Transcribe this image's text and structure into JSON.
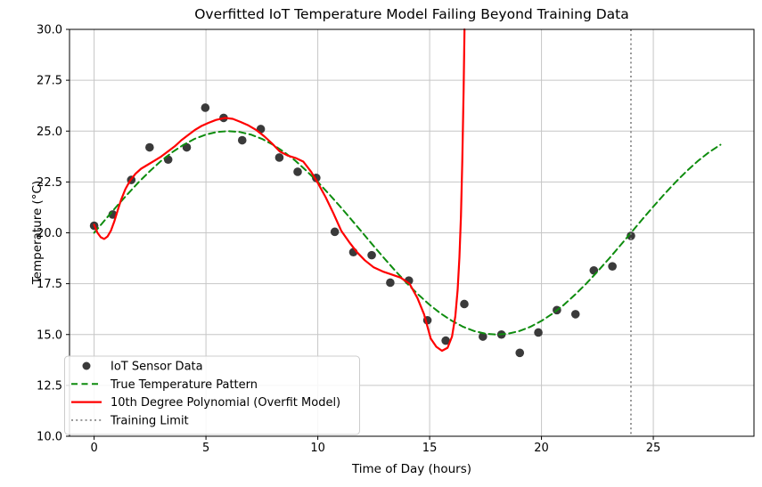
{
  "chart_data": {
    "type": "line",
    "title": "Overfitted IoT Temperature Model Failing Beyond Training Data",
    "xlabel": "Time of Day (hours)",
    "ylabel": "Temperature (°C)",
    "xlim": [
      -1.1,
      29.5
    ],
    "ylim": [
      10,
      30
    ],
    "x_ticks": [
      0,
      5,
      10,
      15,
      20,
      25
    ],
    "x_tick_labels": [
      "0",
      "5",
      "10",
      "15",
      "20",
      "25"
    ],
    "y_ticks": [
      10,
      12.5,
      15,
      17.5,
      20,
      22.5,
      25,
      27.5,
      30
    ],
    "y_tick_labels": [
      "10.0",
      "12.5",
      "15.0",
      "17.5",
      "20.0",
      "22.5",
      "25.0",
      "27.5",
      "30.0"
    ],
    "grid": true,
    "grid_color": "#c6c6c6",
    "spine_color": "#000000",
    "legend_position": "lower-left",
    "series": [
      {
        "key": "sensor-data",
        "name": "IoT Sensor Data",
        "type": "scatter",
        "color": "#3a3a3a",
        "marker_radius": 4.8,
        "x": [
          0,
          0.83,
          1.66,
          2.48,
          3.31,
          4.14,
          4.97,
          5.79,
          6.62,
          7.45,
          8.28,
          9.1,
          9.93,
          10.76,
          11.59,
          12.41,
          13.24,
          14.07,
          14.9,
          15.72,
          16.55,
          17.38,
          18.21,
          19.03,
          19.86,
          20.69,
          21.52,
          22.34,
          23.17,
          24.0
        ],
        "y": [
          20.35,
          20.9,
          22.6,
          24.2,
          23.6,
          24.2,
          26.15,
          25.65,
          24.55,
          25.1,
          23.7,
          23.0,
          22.7,
          20.05,
          19.05,
          18.9,
          17.55,
          17.65,
          15.7,
          14.7,
          16.5,
          14.9,
          15.0,
          14.1,
          15.1,
          16.2,
          16.0,
          18.15,
          18.35,
          19.85
        ]
      },
      {
        "key": "true-pattern",
        "name": "True Temperature Pattern",
        "type": "line",
        "style": "dashed",
        "color": "#0e8c0e",
        "width": 2,
        "x": [
          0,
          0.5,
          1,
          1.5,
          2,
          2.5,
          3,
          3.5,
          4,
          4.5,
          5,
          5.5,
          6,
          6.5,
          7,
          7.5,
          8,
          8.5,
          9,
          9.5,
          10,
          10.5,
          11,
          11.5,
          12,
          12.5,
          13,
          13.5,
          14,
          14.5,
          15,
          15.5,
          16,
          16.5,
          17,
          17.5,
          18,
          18.5,
          19,
          19.5,
          20,
          20.5,
          21,
          21.5,
          22,
          22.5,
          23,
          23.5,
          24,
          24.5,
          25,
          25.5,
          26,
          26.5,
          27,
          27.5,
          28
        ],
        "y": [
          20.0,
          20.65,
          21.29,
          21.91,
          22.5,
          23.04,
          23.54,
          23.97,
          24.33,
          24.62,
          24.83,
          24.96,
          25.0,
          24.96,
          24.83,
          24.62,
          24.33,
          23.97,
          23.54,
          23.04,
          22.5,
          21.91,
          21.29,
          20.65,
          20.0,
          19.35,
          18.71,
          18.09,
          17.5,
          16.96,
          16.46,
          16.03,
          15.67,
          15.38,
          15.17,
          15.04,
          15.0,
          15.04,
          15.17,
          15.38,
          15.67,
          16.03,
          16.46,
          16.96,
          17.5,
          18.09,
          18.71,
          19.35,
          20.0,
          20.65,
          21.29,
          21.91,
          22.5,
          23.04,
          23.54,
          23.97,
          24.33
        ]
      },
      {
        "key": "overfit-model",
        "name": "10th Degree Polynomial (Overfit Model)",
        "type": "line",
        "style": "solid",
        "color": "#ff0000",
        "width": 2.2,
        "x": [
          0,
          0.15,
          0.3,
          0.45,
          0.6,
          0.75,
          0.9,
          1.05,
          1.2,
          1.4,
          1.6,
          1.85,
          2.1,
          2.4,
          2.7,
          3.0,
          3.3,
          3.6,
          3.9,
          4.2,
          4.5,
          4.8,
          5.1,
          5.45,
          5.85,
          6.2,
          6.55,
          6.9,
          7.25,
          7.6,
          7.95,
          8.3,
          8.65,
          9.0,
          9.35,
          9.7,
          10.0,
          10.35,
          10.7,
          11.05,
          11.4,
          11.75,
          12.1,
          12.5,
          12.9,
          13.3,
          13.7,
          14.1,
          14.45,
          14.75,
          15.05,
          15.3,
          15.55,
          15.8,
          16.0,
          16.15,
          16.25,
          16.33,
          16.4,
          16.46,
          16.52,
          16.56
        ],
        "y": [
          20.4,
          20.0,
          19.78,
          19.7,
          19.82,
          20.1,
          20.55,
          21.1,
          21.6,
          22.15,
          22.55,
          22.9,
          23.15,
          23.35,
          23.55,
          23.75,
          24.0,
          24.25,
          24.55,
          24.8,
          25.05,
          25.25,
          25.4,
          25.55,
          25.65,
          25.6,
          25.45,
          25.28,
          25.05,
          24.75,
          24.4,
          24.0,
          23.8,
          23.68,
          23.5,
          23.0,
          22.45,
          21.75,
          20.95,
          20.1,
          19.55,
          19.05,
          18.65,
          18.3,
          18.1,
          17.95,
          17.8,
          17.5,
          16.8,
          16.0,
          14.8,
          14.4,
          14.2,
          14.35,
          14.9,
          15.9,
          17.2,
          18.8,
          20.8,
          23.5,
          27.0,
          30.0
        ]
      },
      {
        "key": "training-limit",
        "name": "Training Limit",
        "type": "vline",
        "style": "dotted",
        "color": "#7f7f7f",
        "width": 1.6,
        "x": 24
      }
    ]
  }
}
